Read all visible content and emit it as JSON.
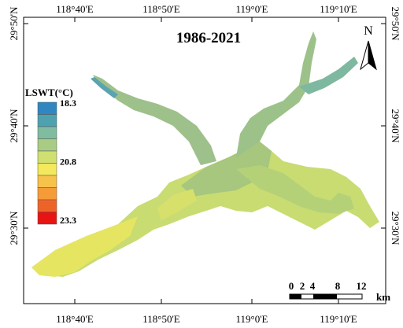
{
  "title": "1986-2021",
  "north": "N",
  "longitude_labels": [
    "118°40'E",
    "118°50'E",
    "119°0'E",
    "119°10'E"
  ],
  "latitude_labels": [
    "29°50'N",
    "29°40'N",
    "29°30'N"
  ],
  "legend": {
    "title": "LSWT(°C)",
    "labels": [
      "18.3",
      "20.8",
      "23.3"
    ],
    "colors": [
      "#2f86c0",
      "#4ea2b0",
      "#7fbca0",
      "#a9cc84",
      "#cfe070",
      "#f4e85c",
      "#f7c24c",
      "#f59b3a",
      "#ee6428",
      "#e81414"
    ]
  },
  "scale_bar": {
    "labels": [
      "0",
      "2",
      "4",
      "8",
      "12"
    ],
    "unit": "km"
  }
}
